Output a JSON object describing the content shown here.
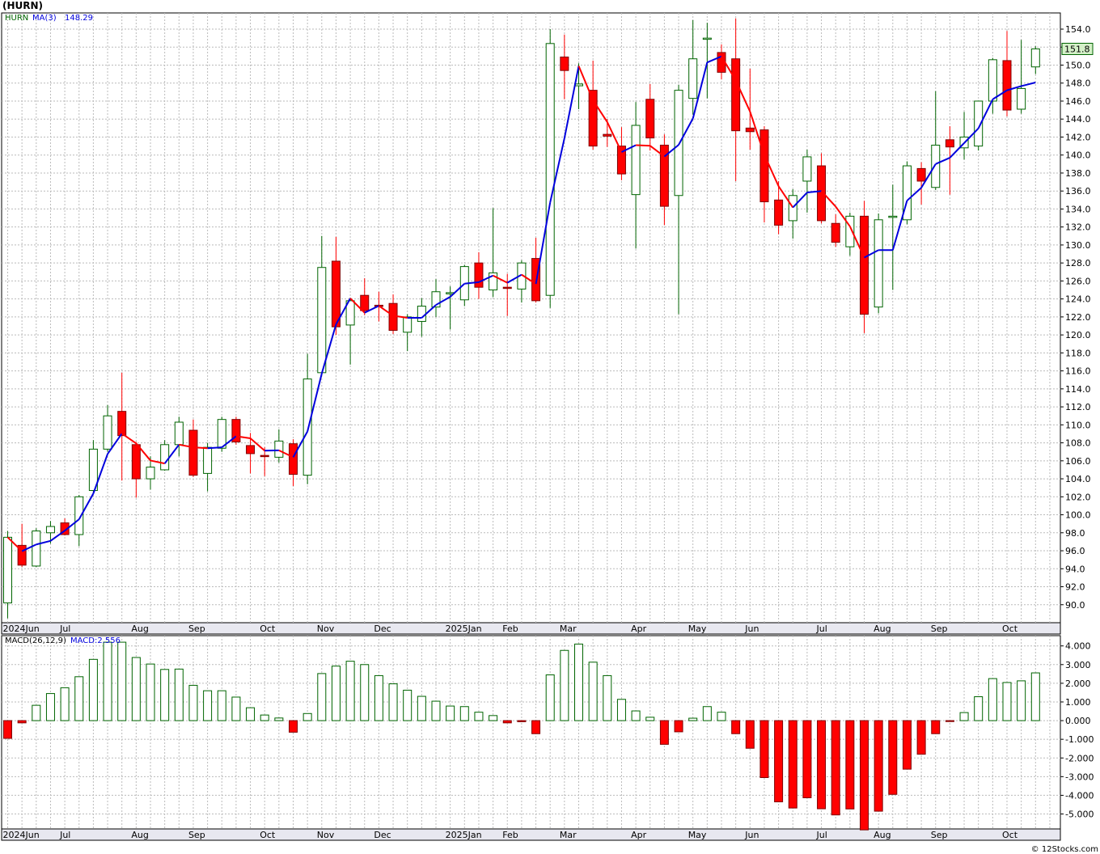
{
  "title": "(HURN)",
  "footer": "© 12Stocks.com",
  "chart_data": [
    {
      "type": "candlestick",
      "symbol_label": "HURN",
      "ma_label": "MA(3)",
      "ma_value_label": "148.29",
      "last_price_label": "151.8",
      "ylim": [
        88.0,
        155.8
      ],
      "y_ticks": [
        "154.0",
        "152.0",
        "150.0",
        "148.0",
        "146.0",
        "144.0",
        "142.0",
        "140.0",
        "138.0",
        "136.0",
        "134.0",
        "132.0",
        "130.0",
        "128.0",
        "126.0",
        "124.0",
        "122.0",
        "120.0",
        "118.0",
        "116.0",
        "114.0",
        "112.0",
        "110.0",
        "108.0",
        "106.0",
        "104.0",
        "102.0",
        "100.0",
        "98.0",
        "96.0",
        "94.0",
        "92.0",
        "90.0"
      ],
      "x_tick_labels": [
        "2024Jun",
        "Jul",
        "Aug",
        "Sep",
        "Oct",
        "Nov",
        "Dec",
        "2025Jan",
        "Feb",
        "Mar",
        "Apr",
        "May",
        "Jun",
        "Jul",
        "Aug",
        "Sep",
        "Oct"
      ],
      "x_tick_weeks": [
        0,
        4,
        9,
        13,
        18,
        22,
        26,
        31,
        35,
        39,
        44,
        48,
        52,
        57,
        61,
        65,
        70
      ],
      "weeks": [
        {
          "o": 90.2,
          "h": 98.2,
          "l": 88.5,
          "c": 97.5
        },
        {
          "o": 96.6,
          "h": 99.0,
          "l": 94.2,
          "c": 94.4
        },
        {
          "o": 94.3,
          "h": 98.5,
          "l": 94.2,
          "c": 98.2
        },
        {
          "o": 98.0,
          "h": 99.3,
          "l": 96.8,
          "c": 98.7
        },
        {
          "o": 99.1,
          "h": 99.6,
          "l": 97.7,
          "c": 97.8
        },
        {
          "o": 97.8,
          "h": 102.2,
          "l": 96.5,
          "c": 102.0
        },
        {
          "o": 102.7,
          "h": 108.3,
          "l": 102.5,
          "c": 107.3
        },
        {
          "o": 107.3,
          "h": 112.2,
          "l": 107.0,
          "c": 111.0
        },
        {
          "o": 111.5,
          "h": 115.8,
          "l": 103.8,
          "c": 108.8
        },
        {
          "o": 107.8,
          "h": 108.1,
          "l": 101.9,
          "c": 104.0
        },
        {
          "o": 104.0,
          "h": 106.5,
          "l": 102.8,
          "c": 105.3
        },
        {
          "o": 105.0,
          "h": 108.3,
          "l": 104.9,
          "c": 107.8
        },
        {
          "o": 107.8,
          "h": 110.9,
          "l": 106.5,
          "c": 110.3
        },
        {
          "o": 109.4,
          "h": 110.6,
          "l": 104.2,
          "c": 104.4
        },
        {
          "o": 104.6,
          "h": 108.0,
          "l": 102.6,
          "c": 107.5
        },
        {
          "o": 107.4,
          "h": 110.9,
          "l": 107.0,
          "c": 110.6
        },
        {
          "o": 110.6,
          "h": 110.9,
          "l": 107.8,
          "c": 108.1
        },
        {
          "o": 107.7,
          "h": 109.1,
          "l": 104.6,
          "c": 106.8
        },
        {
          "o": 106.6,
          "h": 107.5,
          "l": 104.3,
          "c": 106.5
        },
        {
          "o": 106.4,
          "h": 109.5,
          "l": 105.8,
          "c": 108.2
        },
        {
          "o": 107.9,
          "h": 108.4,
          "l": 103.2,
          "c": 104.5
        },
        {
          "o": 104.4,
          "h": 117.9,
          "l": 103.4,
          "c": 115.1
        },
        {
          "o": 115.8,
          "h": 131.0,
          "l": 115.5,
          "c": 127.5
        },
        {
          "o": 128.2,
          "h": 130.9,
          "l": 120.0,
          "c": 120.9
        },
        {
          "o": 121.1,
          "h": 124.1,
          "l": 116.7,
          "c": 123.8
        },
        {
          "o": 124.4,
          "h": 126.3,
          "l": 122.2,
          "c": 122.7
        },
        {
          "o": 123.3,
          "h": 124.8,
          "l": 121.5,
          "c": 123.2
        },
        {
          "o": 123.5,
          "h": 124.5,
          "l": 120.1,
          "c": 120.5
        },
        {
          "o": 120.3,
          "h": 122.3,
          "l": 118.2,
          "c": 122.0
        },
        {
          "o": 121.5,
          "h": 124.1,
          "l": 119.8,
          "c": 123.2
        },
        {
          "o": 123.1,
          "h": 126.2,
          "l": 122.0,
          "c": 124.8
        },
        {
          "o": 124.7,
          "h": 125.4,
          "l": 120.6,
          "c": 124.7
        },
        {
          "o": 123.9,
          "h": 127.8,
          "l": 123.2,
          "c": 127.6
        },
        {
          "o": 128.0,
          "h": 129.2,
          "l": 124.0,
          "c": 125.3
        },
        {
          "o": 125.0,
          "h": 134.1,
          "l": 124.2,
          "c": 126.9
        },
        {
          "o": 125.3,
          "h": 126.8,
          "l": 122.1,
          "c": 125.2
        },
        {
          "o": 125.1,
          "h": 128.3,
          "l": 123.6,
          "c": 128.0
        },
        {
          "o": 128.5,
          "h": 130.8,
          "l": 123.6,
          "c": 123.8
        },
        {
          "o": 124.4,
          "h": 154.0,
          "l": 123.0,
          "c": 152.4
        },
        {
          "o": 150.9,
          "h": 153.4,
          "l": 146.2,
          "c": 149.4
        },
        {
          "o": 147.7,
          "h": 150.2,
          "l": 145.1,
          "c": 147.9
        },
        {
          "o": 147.2,
          "h": 150.5,
          "l": 140.6,
          "c": 141.0
        },
        {
          "o": 142.3,
          "h": 144.0,
          "l": 140.9,
          "c": 142.1
        },
        {
          "o": 141.0,
          "h": 143.1,
          "l": 137.2,
          "c": 137.9
        },
        {
          "o": 135.6,
          "h": 145.9,
          "l": 129.6,
          "c": 143.3
        },
        {
          "o": 146.2,
          "h": 147.9,
          "l": 140.5,
          "c": 141.9
        },
        {
          "o": 141.1,
          "h": 142.3,
          "l": 132.2,
          "c": 134.3
        },
        {
          "o": 135.5,
          "h": 147.8,
          "l": 122.3,
          "c": 147.2
        },
        {
          "o": 146.3,
          "h": 155.0,
          "l": 144.5,
          "c": 150.7
        },
        {
          "o": 153.0,
          "h": 154.7,
          "l": 146.3,
          "c": 153.0
        },
        {
          "o": 151.4,
          "h": 152.3,
          "l": 148.4,
          "c": 149.2
        },
        {
          "o": 150.7,
          "h": 155.2,
          "l": 137.1,
          "c": 142.7
        },
        {
          "o": 143.0,
          "h": 149.6,
          "l": 140.6,
          "c": 142.6
        },
        {
          "o": 142.8,
          "h": 143.2,
          "l": 132.5,
          "c": 134.8
        },
        {
          "o": 135.0,
          "h": 137.1,
          "l": 131.2,
          "c": 132.2
        },
        {
          "o": 132.7,
          "h": 136.2,
          "l": 130.7,
          "c": 135.5
        },
        {
          "o": 137.1,
          "h": 140.6,
          "l": 133.6,
          "c": 139.8
        },
        {
          "o": 138.8,
          "h": 140.2,
          "l": 132.4,
          "c": 132.7
        },
        {
          "o": 132.4,
          "h": 133.4,
          "l": 129.8,
          "c": 130.3
        },
        {
          "o": 129.8,
          "h": 133.6,
          "l": 128.8,
          "c": 133.2
        },
        {
          "o": 133.2,
          "h": 134.9,
          "l": 120.2,
          "c": 122.3
        },
        {
          "o": 123.1,
          "h": 133.5,
          "l": 122.4,
          "c": 132.8
        },
        {
          "o": 133.1,
          "h": 136.7,
          "l": 125.0,
          "c": 133.2
        },
        {
          "o": 132.8,
          "h": 139.3,
          "l": 132.3,
          "c": 138.8
        },
        {
          "o": 138.5,
          "h": 139.2,
          "l": 134.5,
          "c": 137.1
        },
        {
          "o": 136.4,
          "h": 147.1,
          "l": 136.1,
          "c": 141.1
        },
        {
          "o": 141.7,
          "h": 143.2,
          "l": 135.6,
          "c": 140.9
        },
        {
          "o": 140.8,
          "h": 144.8,
          "l": 139.5,
          "c": 142.0
        },
        {
          "o": 141.0,
          "h": 146.0,
          "l": 140.5,
          "c": 146.0
        },
        {
          "o": 146.0,
          "h": 150.8,
          "l": 144.6,
          "c": 150.6
        },
        {
          "o": 150.5,
          "h": 153.8,
          "l": 144.3,
          "c": 145.0
        },
        {
          "o": 145.1,
          "h": 152.8,
          "l": 144.6,
          "c": 147.4
        },
        {
          "o": 149.8,
          "h": 152.1,
          "l": 149.0,
          "c": 151.8
        }
      ]
    },
    {
      "type": "bar",
      "title_label": "MACD(26,12,9)",
      "value_label": "MACD:2.556",
      "ylim": [
        -5.8,
        4.55
      ],
      "y_ticks": [
        "4.000",
        "3.000",
        "2.000",
        "1.000",
        "0.000",
        "-1.000",
        "-2.000",
        "-3.000",
        "-4.000",
        "-5.000"
      ],
      "x_tick_labels": [
        "2024Jun",
        "Jul",
        "Aug",
        "Sep",
        "Oct",
        "Nov",
        "Dec",
        "2025Jan",
        "Feb",
        "Mar",
        "Apr",
        "May",
        "Jun",
        "Jul",
        "Aug",
        "Sep",
        "Oct"
      ],
      "values": [
        -0.95,
        -0.12,
        0.82,
        1.45,
        1.76,
        2.35,
        3.28,
        4.2,
        4.2,
        3.38,
        3.03,
        2.74,
        2.76,
        1.89,
        1.6,
        1.6,
        1.26,
        0.69,
        0.3,
        0.14,
        -0.62,
        0.38,
        2.52,
        2.92,
        3.18,
        3.0,
        2.41,
        1.97,
        1.63,
        1.3,
        1.04,
        0.78,
        0.75,
        0.45,
        0.27,
        -0.12,
        -0.06,
        -0.7,
        2.45,
        3.76,
        4.1,
        3.13,
        2.41,
        1.14,
        0.52,
        0.18,
        -1.27,
        -0.6,
        0.13,
        0.75,
        0.45,
        -0.7,
        -1.48,
        -3.05,
        -4.35,
        -4.68,
        -4.13,
        -4.72,
        -5.05,
        -4.73,
        -5.85,
        -4.85,
        -3.95,
        -2.6,
        -1.8,
        -0.7,
        -0.05,
        0.43,
        1.28,
        2.25,
        2.04,
        2.13,
        2.556
      ]
    }
  ],
  "colors": {
    "up": "#006400",
    "down": "#ff0000",
    "ma_up": "#0000dd",
    "ma_down": "#ff0000",
    "grid": "#bbbbbb",
    "axis_band": "#e8e8f0",
    "price_tag_bg": "#d4f0c8"
  }
}
